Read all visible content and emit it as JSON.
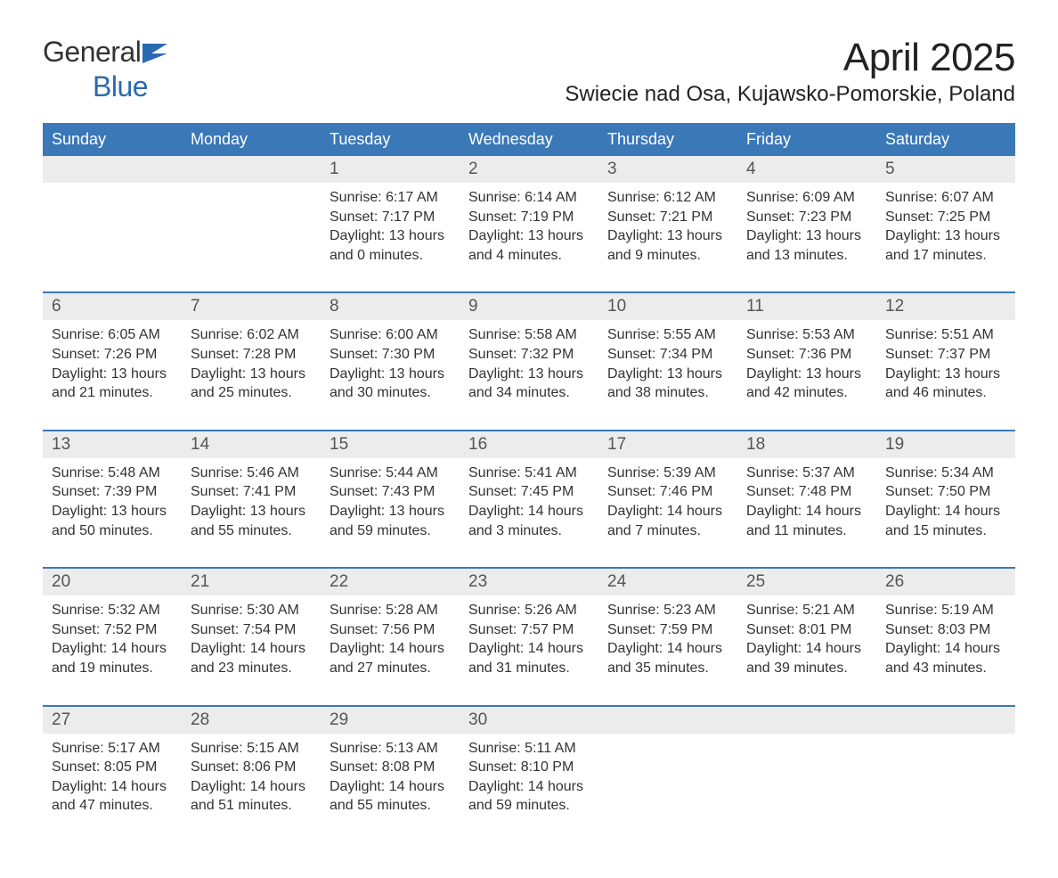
{
  "brand": {
    "general": "General",
    "blue": "Blue"
  },
  "title": "April 2025",
  "subtitle": "Swiecie nad Osa, Kujawsko-Pomorskie, Poland",
  "colors": {
    "header_bg": "#3a78b8",
    "header_text": "#ffffff",
    "daynum_bg": "#ececec",
    "daynum_text": "#555555",
    "body_text": "#333333",
    "accent": "#2a6ab0",
    "week_border": "#3a78b8",
    "background": "#ffffff"
  },
  "typography": {
    "title_fontsize": 44,
    "subtitle_fontsize": 24,
    "dow_fontsize": 18,
    "daynum_fontsize": 19,
    "body_fontsize": 16,
    "logo_fontsize": 32
  },
  "days_of_week": [
    "Sunday",
    "Monday",
    "Tuesday",
    "Wednesday",
    "Thursday",
    "Friday",
    "Saturday"
  ],
  "weeks": [
    [
      {
        "day": "",
        "sunrise": "",
        "sunset": "",
        "daylight1": "",
        "daylight2": ""
      },
      {
        "day": "",
        "sunrise": "",
        "sunset": "",
        "daylight1": "",
        "daylight2": ""
      },
      {
        "day": "1",
        "sunrise": "Sunrise: 6:17 AM",
        "sunset": "Sunset: 7:17 PM",
        "daylight1": "Daylight: 13 hours",
        "daylight2": "and 0 minutes."
      },
      {
        "day": "2",
        "sunrise": "Sunrise: 6:14 AM",
        "sunset": "Sunset: 7:19 PM",
        "daylight1": "Daylight: 13 hours",
        "daylight2": "and 4 minutes."
      },
      {
        "day": "3",
        "sunrise": "Sunrise: 6:12 AM",
        "sunset": "Sunset: 7:21 PM",
        "daylight1": "Daylight: 13 hours",
        "daylight2": "and 9 minutes."
      },
      {
        "day": "4",
        "sunrise": "Sunrise: 6:09 AM",
        "sunset": "Sunset: 7:23 PM",
        "daylight1": "Daylight: 13 hours",
        "daylight2": "and 13 minutes."
      },
      {
        "day": "5",
        "sunrise": "Sunrise: 6:07 AM",
        "sunset": "Sunset: 7:25 PM",
        "daylight1": "Daylight: 13 hours",
        "daylight2": "and 17 minutes."
      }
    ],
    [
      {
        "day": "6",
        "sunrise": "Sunrise: 6:05 AM",
        "sunset": "Sunset: 7:26 PM",
        "daylight1": "Daylight: 13 hours",
        "daylight2": "and 21 minutes."
      },
      {
        "day": "7",
        "sunrise": "Sunrise: 6:02 AM",
        "sunset": "Sunset: 7:28 PM",
        "daylight1": "Daylight: 13 hours",
        "daylight2": "and 25 minutes."
      },
      {
        "day": "8",
        "sunrise": "Sunrise: 6:00 AM",
        "sunset": "Sunset: 7:30 PM",
        "daylight1": "Daylight: 13 hours",
        "daylight2": "and 30 minutes."
      },
      {
        "day": "9",
        "sunrise": "Sunrise: 5:58 AM",
        "sunset": "Sunset: 7:32 PM",
        "daylight1": "Daylight: 13 hours",
        "daylight2": "and 34 minutes."
      },
      {
        "day": "10",
        "sunrise": "Sunrise: 5:55 AM",
        "sunset": "Sunset: 7:34 PM",
        "daylight1": "Daylight: 13 hours",
        "daylight2": "and 38 minutes."
      },
      {
        "day": "11",
        "sunrise": "Sunrise: 5:53 AM",
        "sunset": "Sunset: 7:36 PM",
        "daylight1": "Daylight: 13 hours",
        "daylight2": "and 42 minutes."
      },
      {
        "day": "12",
        "sunrise": "Sunrise: 5:51 AM",
        "sunset": "Sunset: 7:37 PM",
        "daylight1": "Daylight: 13 hours",
        "daylight2": "and 46 minutes."
      }
    ],
    [
      {
        "day": "13",
        "sunrise": "Sunrise: 5:48 AM",
        "sunset": "Sunset: 7:39 PM",
        "daylight1": "Daylight: 13 hours",
        "daylight2": "and 50 minutes."
      },
      {
        "day": "14",
        "sunrise": "Sunrise: 5:46 AM",
        "sunset": "Sunset: 7:41 PM",
        "daylight1": "Daylight: 13 hours",
        "daylight2": "and 55 minutes."
      },
      {
        "day": "15",
        "sunrise": "Sunrise: 5:44 AM",
        "sunset": "Sunset: 7:43 PM",
        "daylight1": "Daylight: 13 hours",
        "daylight2": "and 59 minutes."
      },
      {
        "day": "16",
        "sunrise": "Sunrise: 5:41 AM",
        "sunset": "Sunset: 7:45 PM",
        "daylight1": "Daylight: 14 hours",
        "daylight2": "and 3 minutes."
      },
      {
        "day": "17",
        "sunrise": "Sunrise: 5:39 AM",
        "sunset": "Sunset: 7:46 PM",
        "daylight1": "Daylight: 14 hours",
        "daylight2": "and 7 minutes."
      },
      {
        "day": "18",
        "sunrise": "Sunrise: 5:37 AM",
        "sunset": "Sunset: 7:48 PM",
        "daylight1": "Daylight: 14 hours",
        "daylight2": "and 11 minutes."
      },
      {
        "day": "19",
        "sunrise": "Sunrise: 5:34 AM",
        "sunset": "Sunset: 7:50 PM",
        "daylight1": "Daylight: 14 hours",
        "daylight2": "and 15 minutes."
      }
    ],
    [
      {
        "day": "20",
        "sunrise": "Sunrise: 5:32 AM",
        "sunset": "Sunset: 7:52 PM",
        "daylight1": "Daylight: 14 hours",
        "daylight2": "and 19 minutes."
      },
      {
        "day": "21",
        "sunrise": "Sunrise: 5:30 AM",
        "sunset": "Sunset: 7:54 PM",
        "daylight1": "Daylight: 14 hours",
        "daylight2": "and 23 minutes."
      },
      {
        "day": "22",
        "sunrise": "Sunrise: 5:28 AM",
        "sunset": "Sunset: 7:56 PM",
        "daylight1": "Daylight: 14 hours",
        "daylight2": "and 27 minutes."
      },
      {
        "day": "23",
        "sunrise": "Sunrise: 5:26 AM",
        "sunset": "Sunset: 7:57 PM",
        "daylight1": "Daylight: 14 hours",
        "daylight2": "and 31 minutes."
      },
      {
        "day": "24",
        "sunrise": "Sunrise: 5:23 AM",
        "sunset": "Sunset: 7:59 PM",
        "daylight1": "Daylight: 14 hours",
        "daylight2": "and 35 minutes."
      },
      {
        "day": "25",
        "sunrise": "Sunrise: 5:21 AM",
        "sunset": "Sunset: 8:01 PM",
        "daylight1": "Daylight: 14 hours",
        "daylight2": "and 39 minutes."
      },
      {
        "day": "26",
        "sunrise": "Sunrise: 5:19 AM",
        "sunset": "Sunset: 8:03 PM",
        "daylight1": "Daylight: 14 hours",
        "daylight2": "and 43 minutes."
      }
    ],
    [
      {
        "day": "27",
        "sunrise": "Sunrise: 5:17 AM",
        "sunset": "Sunset: 8:05 PM",
        "daylight1": "Daylight: 14 hours",
        "daylight2": "and 47 minutes."
      },
      {
        "day": "28",
        "sunrise": "Sunrise: 5:15 AM",
        "sunset": "Sunset: 8:06 PM",
        "daylight1": "Daylight: 14 hours",
        "daylight2": "and 51 minutes."
      },
      {
        "day": "29",
        "sunrise": "Sunrise: 5:13 AM",
        "sunset": "Sunset: 8:08 PM",
        "daylight1": "Daylight: 14 hours",
        "daylight2": "and 55 minutes."
      },
      {
        "day": "30",
        "sunrise": "Sunrise: 5:11 AM",
        "sunset": "Sunset: 8:10 PM",
        "daylight1": "Daylight: 14 hours",
        "daylight2": "and 59 minutes."
      },
      {
        "day": "",
        "sunrise": "",
        "sunset": "",
        "daylight1": "",
        "daylight2": ""
      },
      {
        "day": "",
        "sunrise": "",
        "sunset": "",
        "daylight1": "",
        "daylight2": ""
      },
      {
        "day": "",
        "sunrise": "",
        "sunset": "",
        "daylight1": "",
        "daylight2": ""
      }
    ]
  ]
}
